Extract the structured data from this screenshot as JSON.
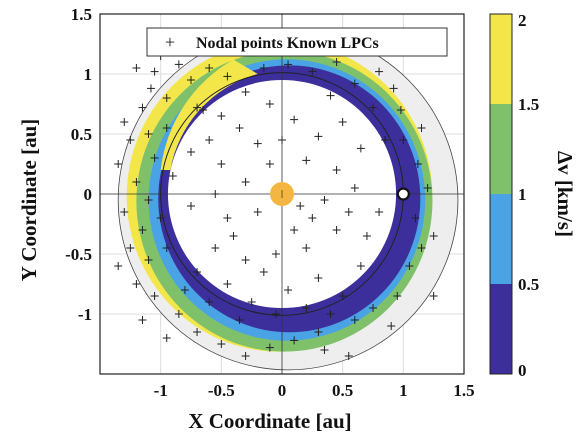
{
  "chart_data": {
    "type": "scatter",
    "title": "",
    "xlabel": "X Coordinate [au]",
    "ylabel": "Y Coordinate [au]",
    "xlim": [
      -1.5,
      1.5
    ],
    "ylim": [
      -1.5,
      1.5
    ],
    "xticks": [
      -1,
      -0.5,
      0,
      0.5,
      1,
      1.5
    ],
    "yticks": [
      1.5,
      1,
      0.5,
      0,
      -0.5,
      -1
    ],
    "grid": true,
    "legend": {
      "placement": "top-right",
      "entries": [
        "Nodal points Known LPCs"
      ]
    },
    "colorbar": {
      "label": "Δv [km/s]",
      "range": [
        0,
        2
      ],
      "ticks": [
        "2",
        "1.5",
        "1",
        "0.5",
        "0"
      ],
      "bands": [
        {
          "from": 0,
          "to": 0.5,
          "color": "#3d2f9b"
        },
        {
          "from": 0.5,
          "to": 1,
          "color": "#4aa3e4"
        },
        {
          "from": 1,
          "to": 1.5,
          "color": "#7fc16a"
        },
        {
          "from": 1.5,
          "to": 2,
          "color": "#f3e64a"
        }
      ]
    },
    "sun": {
      "x": 0,
      "y": 0,
      "color": "#f4b642"
    },
    "earth": {
      "x": 1,
      "y": 0
    },
    "orbit_radius": 1,
    "series": [
      {
        "name": "Nodal points Known LPCs",
        "marker": "+",
        "points": [
          [
            -1.2,
            1.05
          ],
          [
            -1.05,
            1.02
          ],
          [
            -0.85,
            1.08
          ],
          [
            -0.55,
            1.18
          ],
          [
            -0.75,
            0.95
          ],
          [
            -1.08,
            0.88
          ],
          [
            -1.15,
            0.72
          ],
          [
            -0.95,
            0.8
          ],
          [
            -0.7,
            0.72
          ],
          [
            -0.45,
            0.98
          ],
          [
            -0.3,
            0.85
          ],
          [
            -0.15,
            1.05
          ],
          [
            0.05,
            1.08
          ],
          [
            0.25,
            1.02
          ],
          [
            0.45,
            1.1
          ],
          [
            0.6,
            0.92
          ],
          [
            0.8,
            1.02
          ],
          [
            0.92,
            0.88
          ],
          [
            0.85,
            1.25
          ],
          [
            0.65,
            1.2
          ],
          [
            -0.35,
            1.22
          ],
          [
            -1.3,
            0.6
          ],
          [
            -1.25,
            0.45
          ],
          [
            -1.1,
            0.5
          ],
          [
            -0.95,
            0.55
          ],
          [
            -1.05,
            0.3
          ],
          [
            -1.35,
            0.25
          ],
          [
            -1.2,
            0.1
          ],
          [
            -1.1,
            -0.05
          ],
          [
            -1.3,
            -0.15
          ],
          [
            -1.15,
            -0.3
          ],
          [
            -1.0,
            -0.2
          ],
          [
            -1.25,
            -0.45
          ],
          [
            -1.35,
            -0.6
          ],
          [
            -1.1,
            -0.55
          ],
          [
            -0.95,
            -0.45
          ],
          [
            -1.2,
            -0.75
          ],
          [
            -1.05,
            -0.85
          ],
          [
            -1.15,
            -1.05
          ],
          [
            -0.85,
            -1.0
          ],
          [
            -0.7,
            -1.15
          ],
          [
            -0.95,
            -1.2
          ],
          [
            -0.5,
            -1.25
          ],
          [
            -0.3,
            -1.35
          ],
          [
            -0.1,
            -1.28
          ],
          [
            0.1,
            -1.22
          ],
          [
            0.35,
            -1.3
          ],
          [
            0.55,
            -1.35
          ],
          [
            0.3,
            -1.15
          ],
          [
            0.6,
            -1.05
          ],
          [
            0.75,
            -0.95
          ],
          [
            0.9,
            -1.1
          ],
          [
            0.95,
            -0.85
          ],
          [
            1.05,
            -0.6
          ],
          [
            1.15,
            -0.45
          ],
          [
            1.25,
            -0.35
          ],
          [
            1.1,
            -0.2
          ],
          [
            1.2,
            0.05
          ],
          [
            1.12,
            0.25
          ],
          [
            1.0,
            0.45
          ],
          [
            1.15,
            0.55
          ],
          [
            0.98,
            0.7
          ],
          [
            1.25,
            -0.85
          ],
          [
            -0.6,
            0.45
          ],
          [
            -0.5,
            0.25
          ],
          [
            -0.75,
            0.35
          ],
          [
            -0.35,
            0.55
          ],
          [
            -0.2,
            0.42
          ],
          [
            0.1,
            0.62
          ],
          [
            0.3,
            0.48
          ],
          [
            0.5,
            0.6
          ],
          [
            0.65,
            0.38
          ],
          [
            0.45,
            0.2
          ],
          [
            0.2,
            0.28
          ],
          [
            -0.1,
            0.25
          ],
          [
            -0.3,
            0.1
          ],
          [
            -0.55,
            0.0
          ],
          [
            -0.75,
            -0.1
          ],
          [
            -0.45,
            -0.2
          ],
          [
            -0.2,
            -0.15
          ],
          [
            0.15,
            -0.1
          ],
          [
            0.35,
            -0.05
          ],
          [
            0.6,
            0.05
          ],
          [
            0.8,
            -0.15
          ],
          [
            0.7,
            -0.35
          ],
          [
            0.45,
            -0.3
          ],
          [
            0.2,
            -0.45
          ],
          [
            -0.05,
            -0.5
          ],
          [
            -0.3,
            -0.55
          ],
          [
            -0.55,
            -0.45
          ],
          [
            -0.7,
            -0.65
          ],
          [
            -0.45,
            -0.75
          ],
          [
            -0.15,
            -0.65
          ],
          [
            0.05,
            -0.8
          ],
          [
            0.3,
            -0.7
          ],
          [
            0.5,
            -0.85
          ],
          [
            0.65,
            -0.6
          ],
          [
            -0.25,
            -0.9
          ],
          [
            -0.05,
            -1.0
          ],
          [
            0.2,
            -0.95
          ],
          [
            0.4,
            -1.0
          ],
          [
            -0.6,
            -0.9
          ],
          [
            -0.35,
            -1.05
          ],
          [
            -0.8,
            -0.8
          ],
          [
            -0.9,
            0.15
          ],
          [
            -0.65,
            0.7
          ],
          [
            0.75,
            0.72
          ],
          [
            0.85,
            0.45
          ],
          [
            0.1,
            -0.3
          ],
          [
            -0.1,
            0.75
          ],
          [
            0.4,
            0.82
          ],
          [
            -0.5,
            0.65
          ],
          [
            0.0,
            0.45
          ],
          [
            0.25,
            -0.2
          ],
          [
            -0.4,
            -0.35
          ],
          [
            0.55,
            -0.15
          ],
          [
            -1.0,
            1.15
          ],
          [
            -0.6,
            1.05
          ],
          [
            0.15,
            1.2
          ]
        ]
      }
    ]
  }
}
